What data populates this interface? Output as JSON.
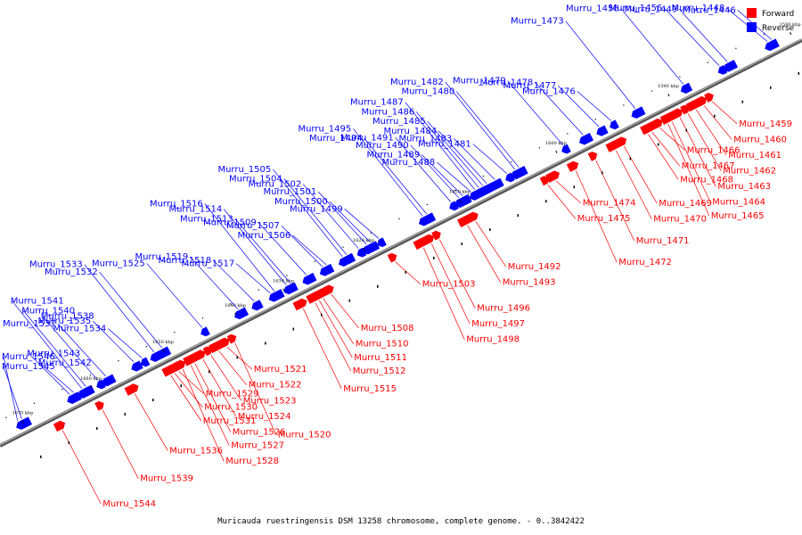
{
  "caption": "Muricauda ruestringensis DSM 13258 chromosome, complete genome. - 0..3842422",
  "legend": {
    "items": [
      {
        "label": "Forward",
        "color": "#ff0000"
      },
      {
        "label": "Reverse",
        "color": "#0000ff"
      }
    ]
  },
  "colors": {
    "forward": "#ff0000",
    "reverse": "#0000ff",
    "backbone": "#808080"
  },
  "kbp_ticks": [
    {
      "label": "1580 kbp",
      "a": 0.008
    },
    {
      "label": "1590 kbp",
      "a": 0.16
    },
    {
      "label": "1600 kbp",
      "a": 0.3
    },
    {
      "label": "1610 kbp",
      "a": 0.42
    },
    {
      "label": "1620 kbp",
      "a": 0.54
    },
    {
      "label": "1630 kbp",
      "a": 0.64
    },
    {
      "label": "1640 kbp",
      "a": 0.7
    },
    {
      "label": "1650 kbp",
      "a": 0.79
    },
    {
      "label": "1660 kbp",
      "a": 0.88
    },
    {
      "label": "1670 kbp",
      "a": 0.965
    },
    {
      "label": "1680 kbp",
      "a": 1.06
    }
  ],
  "reverse_genes": [
    {
      "name": "Murru_1446",
      "a": 0.03
    },
    {
      "name": "Murru_1448",
      "a": 0.035
    },
    {
      "name": "Murru_1449",
      "a": 0.085
    },
    {
      "name": "Murru_1456",
      "a": 0.095
    },
    {
      "name": "Murru_1458",
      "a": 0.14
    },
    {
      "name": "Murru_1473",
      "a": 0.2
    },
    {
      "name": "Murru_1476",
      "a": 0.23
    },
    {
      "name": "Murru_1477",
      "a": 0.245
    },
    {
      "name": "Murru_1478",
      "a": 0.265
    },
    {
      "name": "Murru_1479",
      "a": 0.29
    },
    {
      "name": "Murru_1480",
      "a": 0.345
    },
    {
      "name": "Murru_1482",
      "a": 0.35
    },
    {
      "name": "Murru_1481",
      "a": 0.36
    },
    {
      "name": "Murru_1483",
      "a": 0.375
    },
    {
      "name": "Murru_1484",
      "a": 0.385
    },
    {
      "name": "Murru_1485",
      "a": 0.39
    },
    {
      "name": "Murru_1486",
      "a": 0.395
    },
    {
      "name": "Murru_1487",
      "a": 0.4
    },
    {
      "name": "Murru_1488",
      "a": 0.405
    },
    {
      "name": "Murru_1489",
      "a": 0.415
    },
    {
      "name": "Murru_1490",
      "a": 0.42
    },
    {
      "name": "Murru_1491",
      "a": 0.43
    },
    {
      "name": "Murru_1494",
      "a": 0.46
    },
    {
      "name": "Murru_1495",
      "a": 0.465
    },
    {
      "name": "Murru_1499",
      "a": 0.52
    },
    {
      "name": "Murru_1500",
      "a": 0.53
    },
    {
      "name": "Murru_1501",
      "a": 0.535
    },
    {
      "name": "Murru_1502",
      "a": 0.545
    },
    {
      "name": "Murru_1504",
      "a": 0.56
    },
    {
      "name": "Murru_1505",
      "a": 0.565
    },
    {
      "name": "Murru_1506",
      "a": 0.585
    },
    {
      "name": "Murru_1507",
      "a": 0.59
    },
    {
      "name": "Murru_1509",
      "a": 0.61
    },
    {
      "name": "Murru_1513",
      "a": 0.63
    },
    {
      "name": "Murru_1514",
      "a": 0.635
    },
    {
      "name": "Murru_1516",
      "a": 0.65
    },
    {
      "name": "Murru_1517",
      "a": 0.655
    },
    {
      "name": "Murru_1518",
      "a": 0.675
    },
    {
      "name": "Murru_1519",
      "a": 0.695
    },
    {
      "name": "Murru_1525",
      "a": 0.74
    },
    {
      "name": "Murru_1532",
      "a": 0.79
    },
    {
      "name": "Murru_1533",
      "a": 0.8
    },
    {
      "name": "Murru_1534",
      "a": 0.815
    },
    {
      "name": "Murru_1535",
      "a": 0.825
    },
    {
      "name": "Murru_1537",
      "a": 0.86
    },
    {
      "name": "Murru_1538",
      "a": 0.87
    },
    {
      "name": "Murru_1540",
      "a": 0.885
    },
    {
      "name": "Murru_1541",
      "a": 0.89
    },
    {
      "name": "Murru_1542",
      "a": 0.9
    },
    {
      "name": "Murru_1543",
      "a": 0.905
    },
    {
      "name": "Murru_1545",
      "a": 0.965
    },
    {
      "name": "Murru_1546",
      "a": 0.97
    }
  ],
  "forward_genes": [
    {
      "name": "Murru_1459",
      "a": 0.12
    },
    {
      "name": "Murru_1460",
      "a": 0.13
    },
    {
      "name": "Murru_1461",
      "a": 0.14
    },
    {
      "name": "Murru_1462",
      "a": 0.15
    },
    {
      "name": "Murru_1463",
      "a": 0.16
    },
    {
      "name": "Murru_1464",
      "a": 0.17
    },
    {
      "name": "Murru_1465",
      "a": 0.175
    },
    {
      "name": "Murru_1466",
      "a": 0.185
    },
    {
      "name": "Murru_1467",
      "a": 0.195
    },
    {
      "name": "Murru_1468",
      "a": 0.2
    },
    {
      "name": "Murru_1469",
      "a": 0.23
    },
    {
      "name": "Murru_1470",
      "a": 0.24
    },
    {
      "name": "Murru_1471",
      "a": 0.265
    },
    {
      "name": "Murru_1472",
      "a": 0.29
    },
    {
      "name": "Murru_1474",
      "a": 0.315
    },
    {
      "name": "Murru_1475",
      "a": 0.325
    },
    {
      "name": "Murru_1492",
      "a": 0.415
    },
    {
      "name": "Murru_1493",
      "a": 0.425
    },
    {
      "name": "Murru_1496",
      "a": 0.46
    },
    {
      "name": "Murru_1497",
      "a": 0.47
    },
    {
      "name": "Murru_1498",
      "a": 0.48
    },
    {
      "name": "Murru_1503",
      "a": 0.515
    },
    {
      "name": "Murru_1508",
      "a": 0.595
    },
    {
      "name": "Murru_1510",
      "a": 0.605
    },
    {
      "name": "Murru_1511",
      "a": 0.61
    },
    {
      "name": "Murru_1512",
      "a": 0.615
    },
    {
      "name": "Murru_1515",
      "a": 0.63
    },
    {
      "name": "Murru_1520",
      "a": 0.715
    },
    {
      "name": "Murru_1521",
      "a": 0.725
    },
    {
      "name": "Murru_1522",
      "a": 0.735
    },
    {
      "name": "Murru_1523",
      "a": 0.745
    },
    {
      "name": "Murru_1524",
      "a": 0.755
    },
    {
      "name": "Murru_1526",
      "a": 0.765
    },
    {
      "name": "Murru_1527",
      "a": 0.77
    },
    {
      "name": "Murru_1528",
      "a": 0.78
    },
    {
      "name": "Murru_1529",
      "a": 0.785
    },
    {
      "name": "Murru_1530",
      "a": 0.79
    },
    {
      "name": "Murru_1531",
      "a": 0.795
    },
    {
      "name": "Murru_1536",
      "a": 0.84
    },
    {
      "name": "Murru_1539",
      "a": 0.88
    },
    {
      "name": "Murru_1544",
      "a": 0.93
    }
  ]
}
